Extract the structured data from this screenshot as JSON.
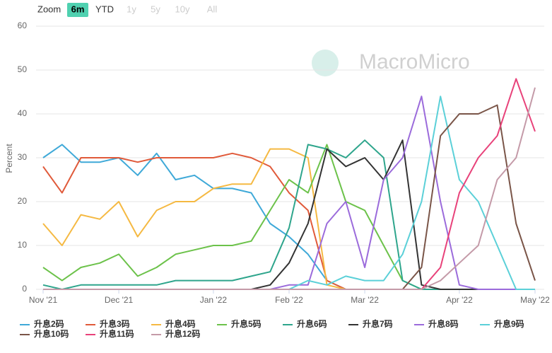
{
  "range_selector": {
    "label": "Zoom",
    "buttons": [
      "6m",
      "YTD",
      "1y",
      "5y",
      "10y",
      "All"
    ],
    "active": 0
  },
  "watermark": "MacroMicro",
  "chart_data": {
    "type": "line",
    "y_label": "Percent",
    "categories": [
      "Nov '21",
      null,
      null,
      null,
      "Dec '21",
      null,
      null,
      null,
      null,
      "Jan '22",
      null,
      null,
      null,
      "Feb '22",
      null,
      null,
      null,
      "Mar '22",
      null,
      null,
      null,
      null,
      "Apr '22",
      null,
      null,
      null,
      "May '22"
    ],
    "ylim": [
      0,
      60
    ],
    "yticks": [
      0,
      10,
      20,
      30,
      40,
      50,
      60
    ],
    "grid": true,
    "series": [
      {
        "name": "升息2码",
        "color": "#3fa9d8",
        "values": [
          30,
          33,
          29,
          29,
          30,
          26,
          31,
          25,
          26,
          23,
          23,
          22,
          15,
          12,
          8,
          2,
          0,
          0,
          0,
          0,
          0,
          0,
          0,
          0,
          0,
          0,
          0
        ]
      },
      {
        "name": "升息3码",
        "color": "#e05a3a",
        "values": [
          28,
          22,
          30,
          30,
          30,
          29,
          30,
          30,
          30,
          30,
          31,
          30,
          28,
          22,
          18,
          2,
          0,
          0,
          0,
          0,
          0,
          0,
          0,
          0,
          0,
          0,
          0
        ]
      },
      {
        "name": "升息4码",
        "color": "#f5b942",
        "values": [
          15,
          10,
          17,
          16,
          20,
          12,
          18,
          20,
          20,
          23,
          24,
          24,
          32,
          32,
          30,
          1,
          0,
          0,
          0,
          0,
          0,
          0,
          0,
          0,
          0,
          0,
          0
        ]
      },
      {
        "name": "升息5码",
        "color": "#6cc24a",
        "values": [
          5,
          2,
          5,
          6,
          8,
          3,
          5,
          8,
          9,
          10,
          10,
          11,
          18,
          25,
          22,
          33,
          20,
          18,
          10,
          2,
          0,
          0,
          0,
          0,
          0,
          0,
          0
        ]
      },
      {
        "name": "升息6码",
        "color": "#2ea58c",
        "values": [
          1,
          0,
          1,
          1,
          1,
          1,
          1,
          2,
          2,
          2,
          2,
          3,
          4,
          14,
          33,
          32,
          30,
          34,
          30,
          2,
          0,
          0,
          0,
          0,
          0,
          0,
          0
        ]
      },
      {
        "name": "升息7码",
        "color": "#333333",
        "values": [
          0,
          0,
          0,
          0,
          0,
          0,
          0,
          0,
          0,
          0,
          0,
          0,
          1,
          6,
          15,
          32,
          28,
          30,
          25,
          34,
          1,
          0,
          0,
          0,
          0,
          0,
          0
        ]
      },
      {
        "name": "升息8码",
        "color": "#9b6bdb",
        "values": [
          0,
          0,
          0,
          0,
          0,
          0,
          0,
          0,
          0,
          0,
          0,
          0,
          0,
          1,
          1,
          15,
          20,
          5,
          25,
          30,
          44,
          20,
          1,
          0,
          0,
          0,
          0
        ]
      },
      {
        "name": "升息9码",
        "color": "#5bd0d8",
        "values": [
          0,
          0,
          0,
          0,
          0,
          0,
          0,
          0,
          0,
          0,
          0,
          0,
          0,
          0,
          2,
          1,
          3,
          2,
          2,
          8,
          20,
          44,
          25,
          20,
          10,
          0,
          0
        ]
      },
      {
        "name": "升息10码",
        "color": "#7a5548",
        "values": [
          0,
          0,
          0,
          0,
          0,
          0,
          0,
          0,
          0,
          0,
          0,
          0,
          0,
          0,
          0,
          0,
          0,
          0,
          0,
          0,
          5,
          35,
          40,
          40,
          42,
          15,
          2
        ]
      },
      {
        "name": "升息11码",
        "color": "#e8427a",
        "values": [
          0,
          0,
          0,
          0,
          0,
          0,
          0,
          0,
          0,
          0,
          0,
          0,
          0,
          0,
          0,
          0,
          0,
          0,
          0,
          0,
          0,
          5,
          22,
          30,
          35,
          48,
          36
        ]
      },
      {
        "name": "升息12码",
        "color": "#c49aa8",
        "values": [
          0,
          0,
          0,
          0,
          0,
          0,
          0,
          0,
          0,
          0,
          0,
          0,
          0,
          0,
          0,
          0,
          0,
          0,
          0,
          0,
          0,
          2,
          6,
          10,
          25,
          30,
          46
        ]
      }
    ]
  }
}
